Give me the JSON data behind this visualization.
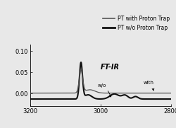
{
  "title": "FT-IR",
  "xlim": [
    3200,
    2800
  ],
  "ylim": [
    -0.03,
    0.115
  ],
  "yticks": [
    0.0,
    0.05,
    0.1
  ],
  "xticks": [
    3200,
    3000,
    2800
  ],
  "legend1": "PT with Proton Trap",
  "legend2": "PT w/o Proton Trap",
  "background_color": "#e8e8e8",
  "line_with_color": "#555555",
  "line_without_color": "#111111",
  "line_with_lw": 0.9,
  "line_without_lw": 1.5,
  "tick_fontsize": 6,
  "legend_fontsize": 5.5,
  "title_fontsize": 7
}
